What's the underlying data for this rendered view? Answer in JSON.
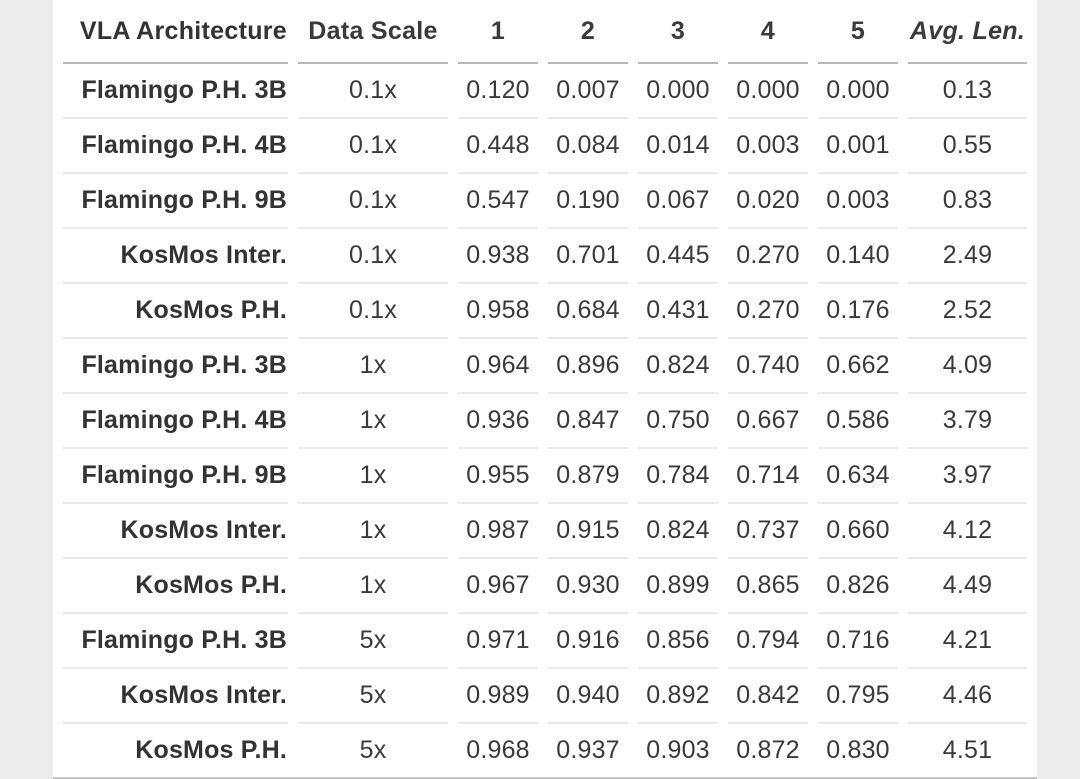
{
  "page": {
    "background_color": "#ececec",
    "table_background_color": "#ffffff",
    "text_color": "#3a3a3a",
    "header_divider_color": "#b9b9b9",
    "row_divider_color": "#eaeaea",
    "bottom_border_color": "#c6c6c6"
  },
  "table": {
    "columns": [
      "VLA Architecture",
      "Data Scale",
      "1",
      "2",
      "3",
      "4",
      "5",
      "Avg. Len."
    ],
    "rows": [
      {
        "architecture": "Flamingo P.H. 3B",
        "data_scale": "0.1x",
        "scores": [
          "0.120",
          "0.007",
          "0.000",
          "0.000",
          "0.000"
        ],
        "avg_len": "0.13"
      },
      {
        "architecture": "Flamingo P.H. 4B",
        "data_scale": "0.1x",
        "scores": [
          "0.448",
          "0.084",
          "0.014",
          "0.003",
          "0.001"
        ],
        "avg_len": "0.55"
      },
      {
        "architecture": "Flamingo P.H. 9B",
        "data_scale": "0.1x",
        "scores": [
          "0.547",
          "0.190",
          "0.067",
          "0.020",
          "0.003"
        ],
        "avg_len": "0.83"
      },
      {
        "architecture": "KosMos Inter.",
        "data_scale": "0.1x",
        "scores": [
          "0.938",
          "0.701",
          "0.445",
          "0.270",
          "0.140"
        ],
        "avg_len": "2.49"
      },
      {
        "architecture": "KosMos P.H.",
        "data_scale": "0.1x",
        "scores": [
          "0.958",
          "0.684",
          "0.431",
          "0.270",
          "0.176"
        ],
        "avg_len": "2.52"
      },
      {
        "architecture": "Flamingo P.H. 3B",
        "data_scale": "1x",
        "scores": [
          "0.964",
          "0.896",
          "0.824",
          "0.740",
          "0.662"
        ],
        "avg_len": "4.09"
      },
      {
        "architecture": "Flamingo P.H. 4B",
        "data_scale": "1x",
        "scores": [
          "0.936",
          "0.847",
          "0.750",
          "0.667",
          "0.586"
        ],
        "avg_len": "3.79"
      },
      {
        "architecture": "Flamingo P.H. 9B",
        "data_scale": "1x",
        "scores": [
          "0.955",
          "0.879",
          "0.784",
          "0.714",
          "0.634"
        ],
        "avg_len": "3.97"
      },
      {
        "architecture": "KosMos Inter.",
        "data_scale": "1x",
        "scores": [
          "0.987",
          "0.915",
          "0.824",
          "0.737",
          "0.660"
        ],
        "avg_len": "4.12"
      },
      {
        "architecture": "KosMos P.H.",
        "data_scale": "1x",
        "scores": [
          "0.967",
          "0.930",
          "0.899",
          "0.865",
          "0.826"
        ],
        "avg_len": "4.49"
      },
      {
        "architecture": "Flamingo P.H. 3B",
        "data_scale": "5x",
        "scores": [
          "0.971",
          "0.916",
          "0.856",
          "0.794",
          "0.716"
        ],
        "avg_len": "4.21"
      },
      {
        "architecture": "KosMos Inter.",
        "data_scale": "5x",
        "scores": [
          "0.989",
          "0.940",
          "0.892",
          "0.842",
          "0.795"
        ],
        "avg_len": "4.46"
      },
      {
        "architecture": "KosMos P.H.",
        "data_scale": "5x",
        "scores": [
          "0.968",
          "0.937",
          "0.903",
          "0.872",
          "0.830"
        ],
        "avg_len": "4.51"
      }
    ]
  },
  "chart_data": {
    "type": "table",
    "title": "",
    "columns": [
      "VLA Architecture",
      "Data Scale",
      "1",
      "2",
      "3",
      "4",
      "5",
      "Avg. Len."
    ],
    "rows": [
      [
        "Flamingo P.H. 3B",
        "0.1x",
        "0.120",
        "0.007",
        "0.000",
        "0.000",
        "0.000",
        "0.13"
      ],
      [
        "Flamingo P.H. 4B",
        "0.1x",
        "0.448",
        "0.084",
        "0.014",
        "0.003",
        "0.001",
        "0.55"
      ],
      [
        "Flamingo P.H. 9B",
        "0.1x",
        "0.547",
        "0.190",
        "0.067",
        "0.020",
        "0.003",
        "0.83"
      ],
      [
        "KosMos Inter.",
        "0.1x",
        "0.938",
        "0.701",
        "0.445",
        "0.270",
        "0.140",
        "2.49"
      ],
      [
        "KosMos P.H.",
        "0.1x",
        "0.958",
        "0.684",
        "0.431",
        "0.270",
        "0.176",
        "2.52"
      ],
      [
        "Flamingo P.H. 3B",
        "1x",
        "0.964",
        "0.896",
        "0.824",
        "0.740",
        "0.662",
        "4.09"
      ],
      [
        "Flamingo P.H. 4B",
        "1x",
        "0.936",
        "0.847",
        "0.750",
        "0.667",
        "0.586",
        "3.79"
      ],
      [
        "Flamingo P.H. 9B",
        "1x",
        "0.955",
        "0.879",
        "0.784",
        "0.714",
        "0.634",
        "3.97"
      ],
      [
        "KosMos Inter.",
        "1x",
        "0.987",
        "0.915",
        "0.824",
        "0.737",
        "0.660",
        "4.12"
      ],
      [
        "KosMos P.H.",
        "1x",
        "0.967",
        "0.930",
        "0.899",
        "0.865",
        "0.826",
        "4.49"
      ],
      [
        "Flamingo P.H. 3B",
        "5x",
        "0.971",
        "0.916",
        "0.856",
        "0.794",
        "0.716",
        "4.21"
      ],
      [
        "KosMos Inter.",
        "5x",
        "0.989",
        "0.940",
        "0.892",
        "0.842",
        "0.795",
        "4.46"
      ],
      [
        "KosMos P.H.",
        "5x",
        "0.968",
        "0.937",
        "0.903",
        "0.872",
        "0.830",
        "4.51"
      ]
    ]
  }
}
